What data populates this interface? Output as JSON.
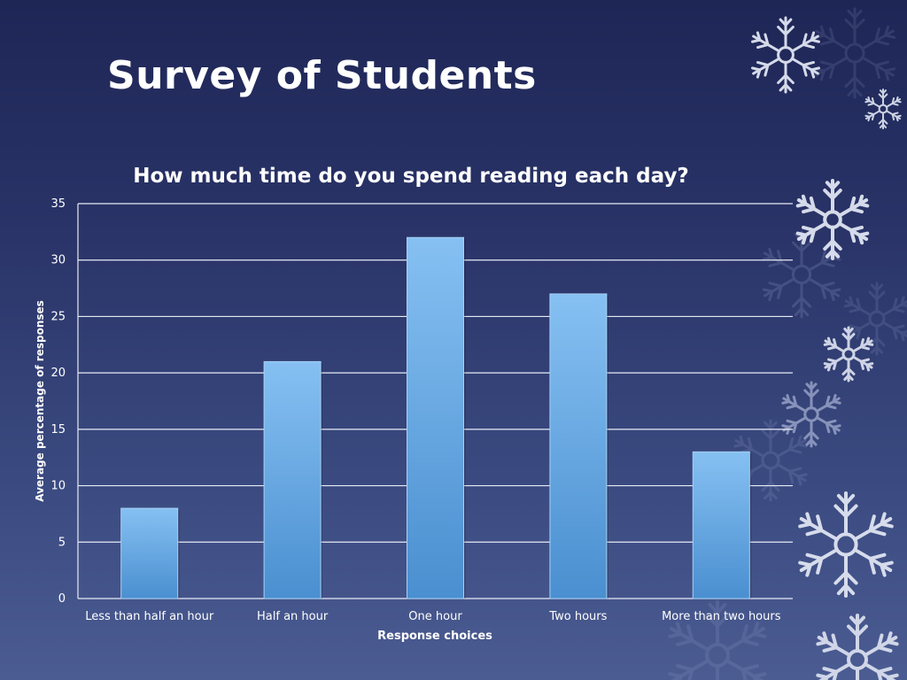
{
  "slide": {
    "title": "Survey of Students"
  },
  "colors": {
    "background_top": "#1e2656",
    "background_bottom": "#4b5c92",
    "bar_top": "#86c0f2",
    "bar_bottom": "#4a8fd0",
    "text": "#ffffff"
  },
  "chart_data": {
    "type": "bar",
    "title": "How much time do you spend reading each day?",
    "xlabel": "Response choices",
    "ylabel": "Average percentage of responses",
    "categories": [
      "Less than half an hour",
      "Half an hour",
      "One hour",
      "Two hours",
      "More than two hours"
    ],
    "values": [
      8,
      21,
      32,
      27,
      13
    ],
    "ylim": [
      0,
      35
    ],
    "yticks": [
      0,
      5,
      10,
      15,
      20,
      25,
      30,
      35
    ],
    "grid": true,
    "legend": "none"
  }
}
